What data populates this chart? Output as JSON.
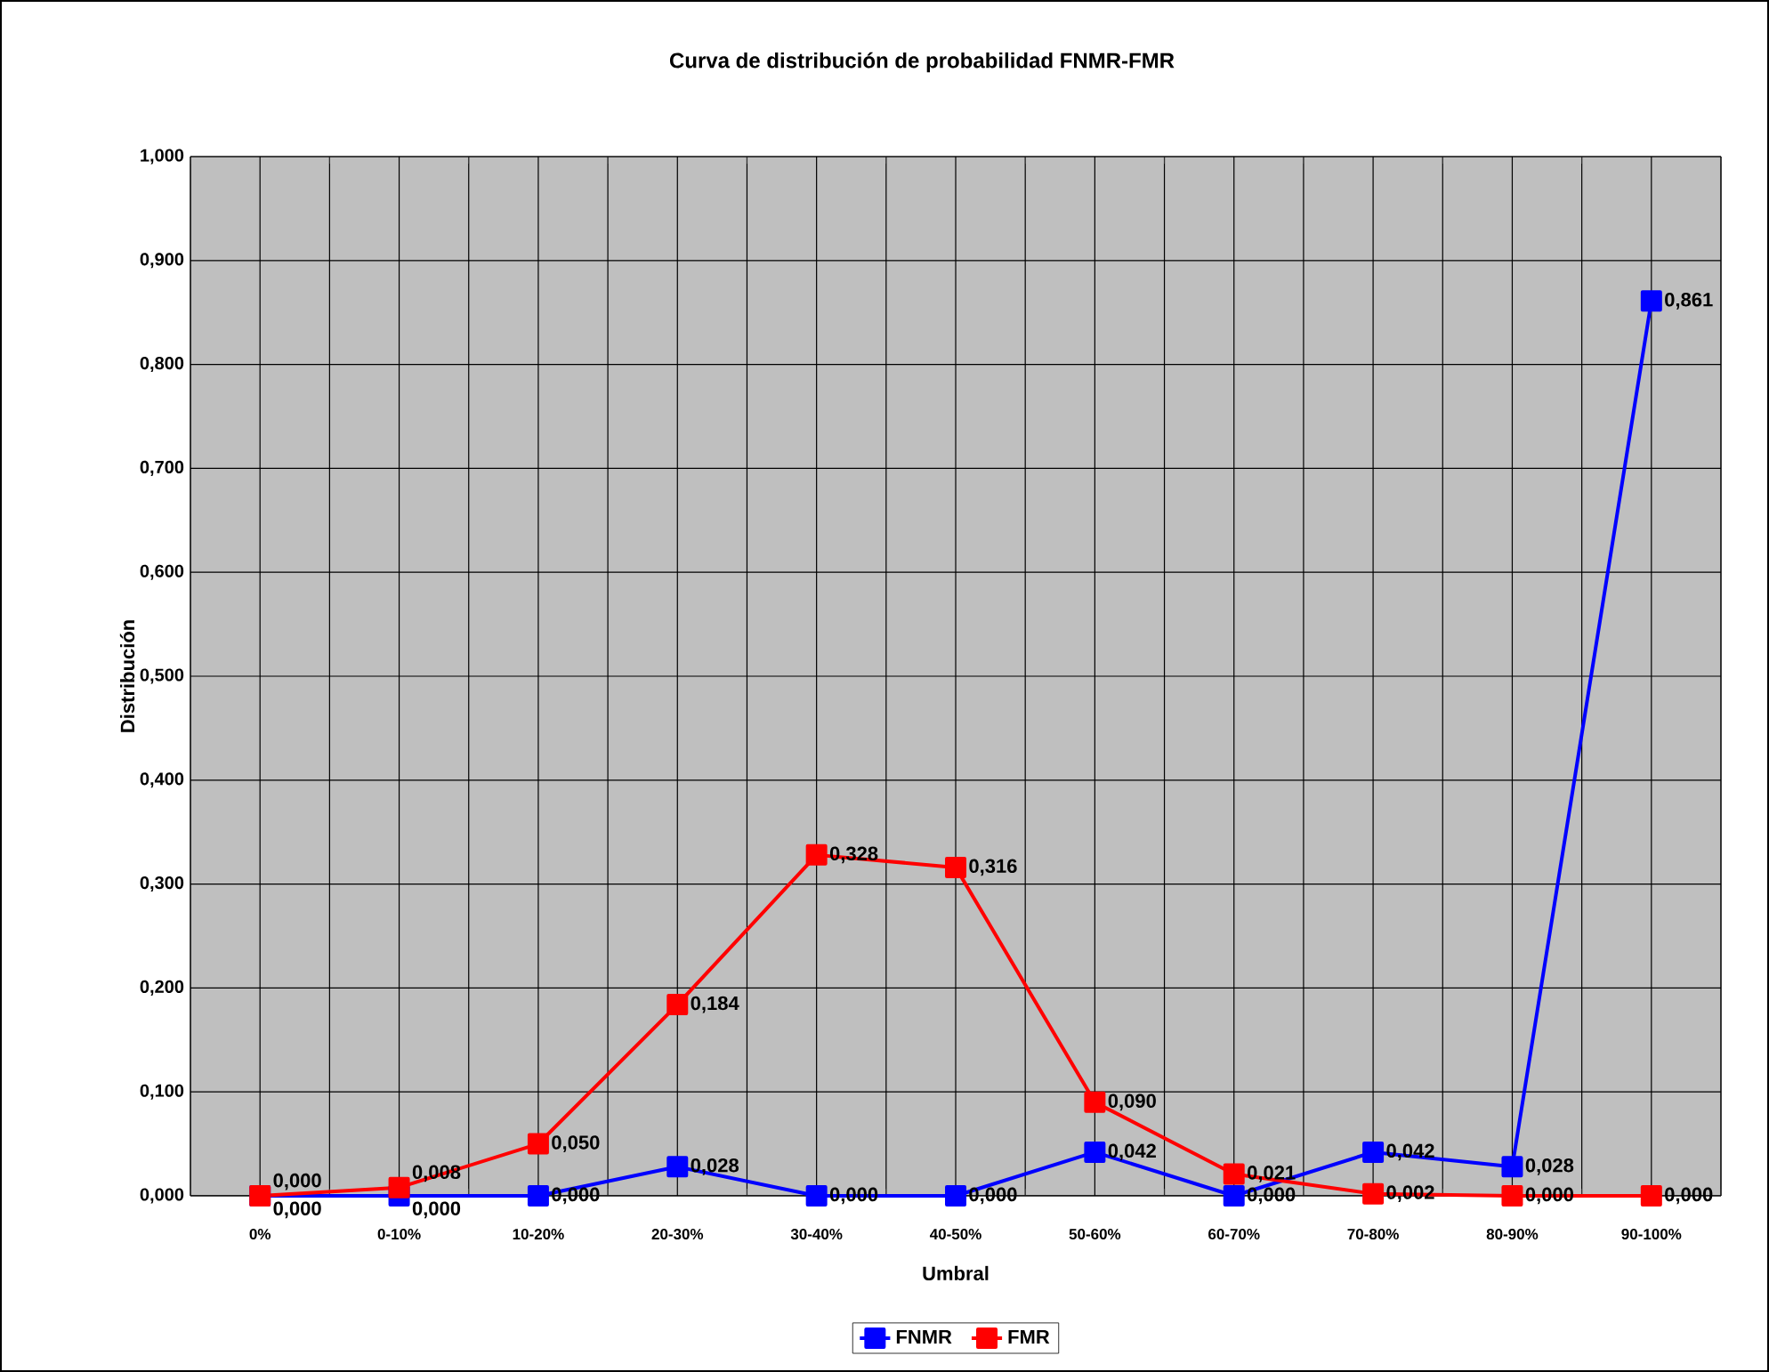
{
  "chart_data": {
    "type": "line",
    "title": "Curva de distribución de probabilidad FNMR-FMR",
    "xlabel": "Umbral",
    "ylabel": "Distribución",
    "categories": [
      "0%",
      "0-10%",
      "10-20%",
      "20-30%",
      "30-40%",
      "40-50%",
      "50-60%",
      "60-70%",
      "70-80%",
      "80-90%",
      "90-100%"
    ],
    "series": [
      {
        "name": "FNMR",
        "color": "#0000ff",
        "values": [
          0.0,
          0.0,
          0.0,
          0.028,
          0.0,
          0.0,
          0.042,
          0.0,
          0.042,
          0.028,
          0.861
        ],
        "value_labels": [
          "0,000",
          "0,000",
          "0,000",
          "0,028",
          "0,000",
          "0,000",
          "0,042",
          "0,000",
          "0,042",
          "0,028",
          "0,861"
        ]
      },
      {
        "name": "FMR",
        "color": "#ff0000",
        "values": [
          0.0,
          0.008,
          0.05,
          0.184,
          0.328,
          0.316,
          0.09,
          0.021,
          0.002,
          0.0,
          0.0
        ],
        "value_labels": [
          "0,000",
          "0,008",
          "0,050",
          "0,184",
          "0,328",
          "0,316",
          "0,090",
          "0,021",
          "0,002",
          "0,000",
          "0,000"
        ]
      }
    ],
    "ylim": [
      0,
      1
    ],
    "yticks": [
      {
        "value": 0,
        "label": "0,000"
      },
      {
        "value": 0.1,
        "label": "0,100"
      },
      {
        "value": 0.2,
        "label": "0,200"
      },
      {
        "value": 0.3,
        "label": "0,300"
      },
      {
        "value": 0.4,
        "label": "0,400"
      },
      {
        "value": 0.5,
        "label": "0,500"
      },
      {
        "value": 0.6,
        "label": "0,600"
      },
      {
        "value": 0.7,
        "label": "0,700"
      },
      {
        "value": 0.8,
        "label": "0,800"
      },
      {
        "value": 0.9,
        "label": "0,900"
      },
      {
        "value": 1,
        "label": "1,000"
      }
    ],
    "grid": true,
    "legend": "bottom",
    "marker": "square",
    "line_style": "solid"
  }
}
